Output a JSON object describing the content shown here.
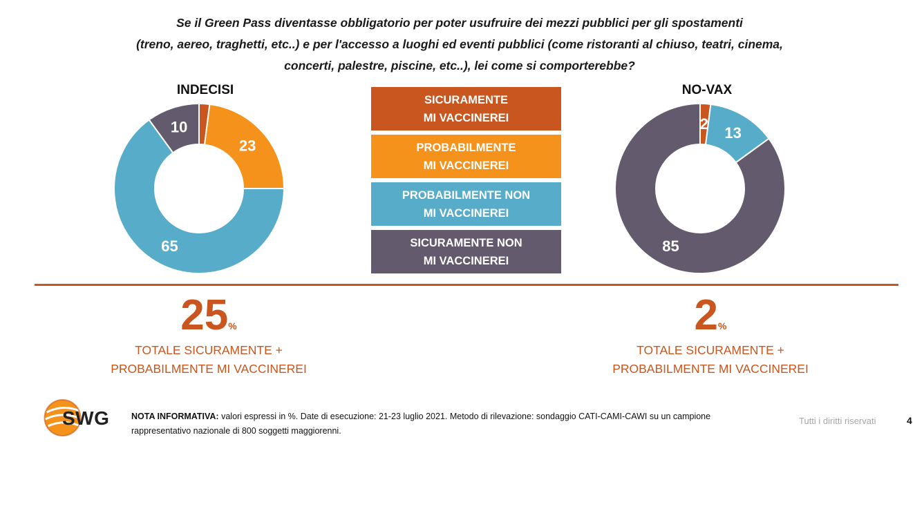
{
  "question": {
    "line1": "Se il Green Pass diventasse obbligatorio per poter usufruire dei mezzi pubblici per gli spostamenti",
    "line2": "(treno, aereo, traghetti, etc..) e per l'accesso a luoghi ed eventi pubblici (come ristoranti al chiuso, teatri, cinema,",
    "line3": "concerti, palestre, piscine, etc..), lei come si comporterebbe?"
  },
  "legend": [
    {
      "line1": "SICURAMENTE",
      "line2": "MI VACCINEREI",
      "color": "#c8561e"
    },
    {
      "line1": "PROBABILMENTE",
      "line2": "MI VACCINEREI",
      "color": "#f5921b"
    },
    {
      "line1": "PROBABILMENTE NON",
      "line2": "MI VACCINEREI",
      "color": "#57adc9"
    },
    {
      "line1": "SICURAMENTE NON",
      "line2": "MI VACCINEREI",
      "color": "#635a6d"
    }
  ],
  "chart_data": [
    {
      "type": "pie",
      "donut": true,
      "title": "INDECISI",
      "categories": [
        "SICURAMENTE MI VACCINEREI",
        "PROBABILMENTE MI VACCINEREI",
        "PROBABILMENTE NON MI VACCINEREI",
        "SICURAMENTE NON MI VACCINEREI"
      ],
      "values": [
        2,
        23,
        65,
        10
      ],
      "colors": [
        "#c8561e",
        "#f5921b",
        "#57adc9",
        "#635a6d"
      ],
      "label_colors": [
        "#c8561e",
        "#ffffff",
        "#ffffff",
        "#ffffff"
      ],
      "unit": "%"
    },
    {
      "type": "pie",
      "donut": true,
      "title": "NO-VAX",
      "categories": [
        "SICURAMENTE MI VACCINEREI",
        "PROBABILMENTE MI VACCINEREI",
        "PROBABILMENTE NON MI VACCINEREI",
        "SICURAMENTE NON MI VACCINEREI"
      ],
      "values": [
        2,
        0,
        13,
        85
      ],
      "colors": [
        "#c8561e",
        "#f5921b",
        "#57adc9",
        "#635a6d"
      ],
      "label_colors": [
        "#ffffff",
        "#ffffff",
        "#ffffff",
        "#ffffff"
      ],
      "unit": "%"
    }
  ],
  "totals": [
    {
      "value": "25",
      "unit": "%",
      "label1": "TOTALE SICURAMENTE +",
      "label2": "PROBABILMENTE MI VACCINEREI"
    },
    {
      "value": "2",
      "unit": "%",
      "label1": "TOTALE SICURAMENTE +",
      "label2": "PROBABILMENTE MI VACCINEREI"
    }
  ],
  "footer": {
    "logo_text": "SWG",
    "note_label": "NOTA INFORMATIVA:",
    "note_text": "valori espressi in %. Date di esecuzione: 21-23 luglio 2021. Metodo di rilevazione: sondaggio CATI-CAMI-CAWI su un campione rappresentativo nazionale di 800 soggetti maggiorenni.",
    "rights": "Tutti i diritti riservati",
    "page_number": "4"
  }
}
